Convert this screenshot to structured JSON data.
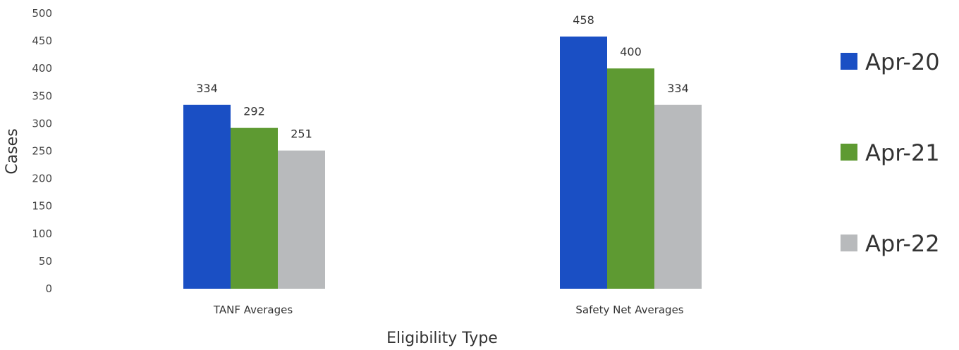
{
  "chart_data": {
    "type": "bar",
    "title": "",
    "xlabel": "Eligibility Type",
    "ylabel": "Cases",
    "ylim": [
      0,
      500
    ],
    "yticks": [
      0,
      50,
      100,
      150,
      200,
      250,
      300,
      350,
      400,
      450,
      500
    ],
    "grid": false,
    "legend_position": "right",
    "categories": [
      "TANF Averages",
      "Safety Net Averages"
    ],
    "series": [
      {
        "name": "Apr-20",
        "color": "#1a4fc4",
        "values": [
          334,
          458
        ]
      },
      {
        "name": "Apr-21",
        "color": "#5e9a32",
        "values": [
          292,
          400
        ]
      },
      {
        "name": "Apr-22",
        "color": "#b8babc",
        "values": [
          251,
          334
        ]
      }
    ]
  }
}
